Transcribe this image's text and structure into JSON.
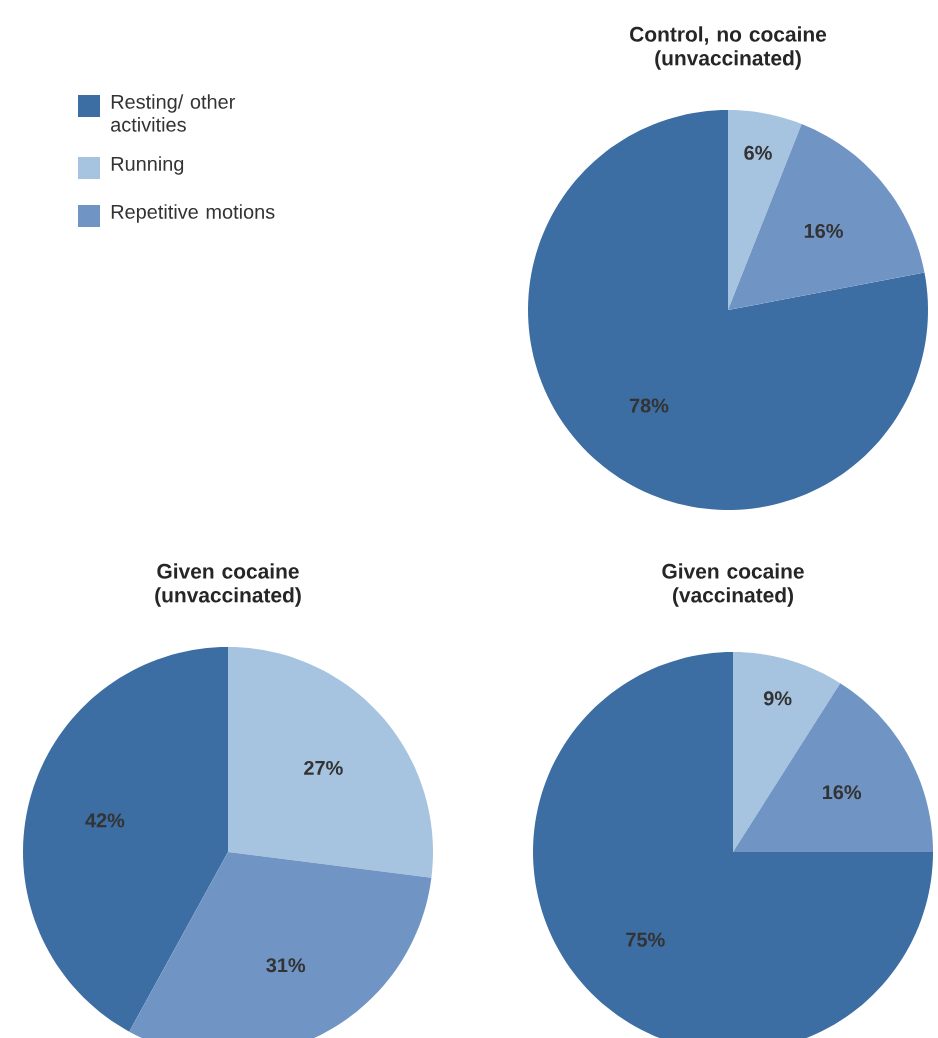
{
  "chart_data": [
    {
      "type": "pie",
      "title": "Control, no cocaine (unvaccinated)",
      "categories": [
        "Resting/ other activities",
        "Running",
        "Repetitive motions"
      ],
      "values": [
        78,
        6,
        16
      ],
      "value_labels": [
        "78%",
        "6%",
        "16%"
      ],
      "colors": [
        "#3c6ea3",
        "#a6c4e0",
        "#7094c4"
      ],
      "legend": "left"
    },
    {
      "type": "pie",
      "title": "Given cocaine (unvaccinated)",
      "categories": [
        null,
        null,
        null
      ],
      "values": [
        42,
        27,
        31
      ],
      "value_labels": [
        "42%",
        "27%",
        "31%"
      ],
      "colors": [
        "#3c6ea3",
        "#a6c4e0",
        "#7094c4"
      ]
    },
    {
      "type": "pie",
      "title": "Given cocaine (vaccinated)",
      "categories": [
        null,
        null,
        null
      ],
      "values": [
        75,
        9,
        16
      ],
      "value_labels": [
        "75%",
        "9%",
        "16%"
      ],
      "colors": [
        "#3c6ea3",
        "#a6c4e0",
        "#7094c4"
      ]
    }
  ]
}
